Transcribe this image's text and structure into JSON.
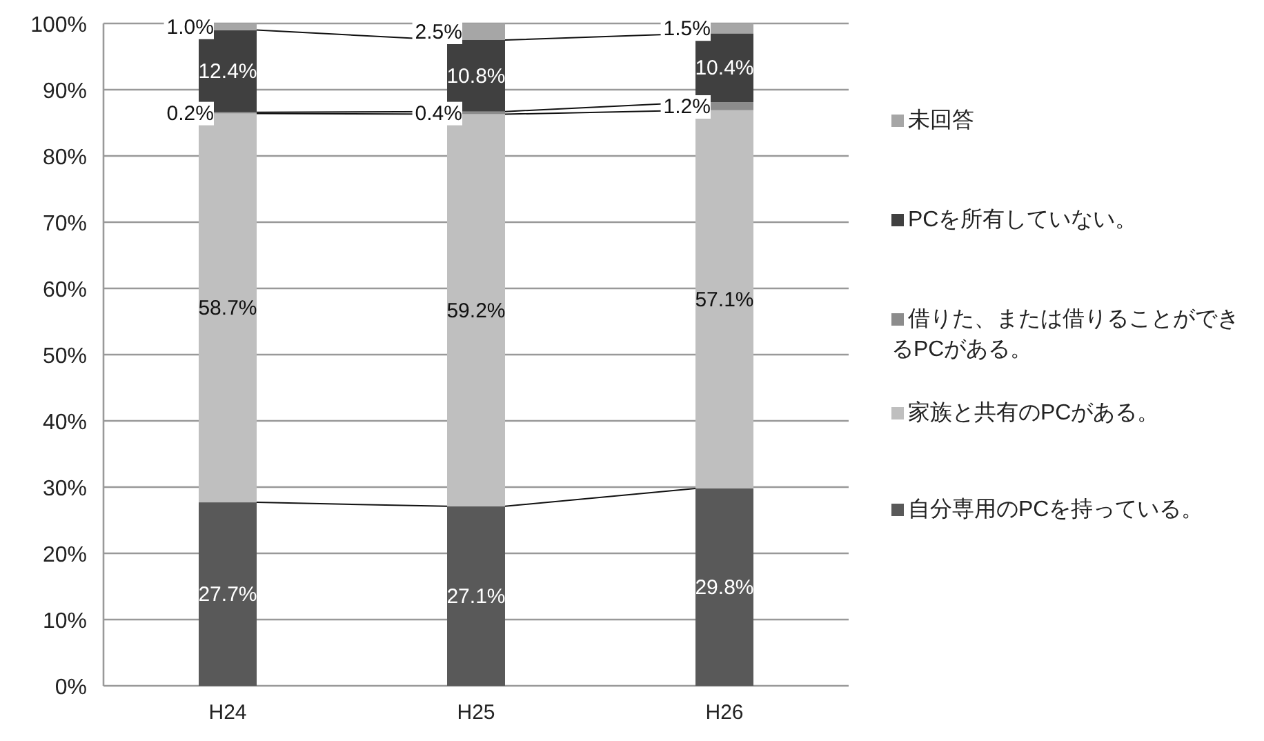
{
  "chart_data": {
    "type": "bar",
    "stacked": true,
    "categories": [
      "H24",
      "H25",
      "H26"
    ],
    "ylim": [
      0,
      100
    ],
    "yticks": [
      {
        "value": 0,
        "label": "0%"
      },
      {
        "value": 10,
        "label": "10%"
      },
      {
        "value": 20,
        "label": "20%"
      },
      {
        "value": 30,
        "label": "30%"
      },
      {
        "value": 40,
        "label": "40%"
      },
      {
        "value": 50,
        "label": "50%"
      },
      {
        "value": 60,
        "label": "60%"
      },
      {
        "value": 70,
        "label": "70%"
      },
      {
        "value": 80,
        "label": "80%"
      },
      {
        "value": 90,
        "label": "90%"
      },
      {
        "value": 100,
        "label": "100%"
      }
    ],
    "grid": "y",
    "legend": "right",
    "series": [
      {
        "name": "自分専用のPCを持っている。",
        "color": "#595959",
        "values": [
          27.7,
          27.1,
          29.8
        ],
        "value_labels": [
          "27.7%",
          "27.1%",
          "29.8%"
        ]
      },
      {
        "name": "家族と共有のPCがある。",
        "color": "#bfbfbf",
        "values": [
          58.7,
          59.2,
          57.1
        ],
        "value_labels": [
          "58.7%",
          "59.2%",
          "57.1%"
        ]
      },
      {
        "name": "借りた、または借りることができるPCがある。",
        "color": "#8c8c8c",
        "values": [
          0.2,
          0.4,
          1.2
        ],
        "value_labels": [
          "0.2%",
          "0.4%",
          "1.2%"
        ]
      },
      {
        "name": "PCを所有していない。",
        "color": "#404040",
        "values": [
          12.4,
          10.8,
          10.4
        ],
        "value_labels": [
          "12.4%",
          "10.8%",
          "10.4%"
        ]
      },
      {
        "name": "未回答",
        "color": "#a6a6a6",
        "values": [
          1.0,
          2.5,
          1.5
        ],
        "value_labels": [
          "1.0%",
          "2.5%",
          "1.5%"
        ]
      }
    ]
  }
}
